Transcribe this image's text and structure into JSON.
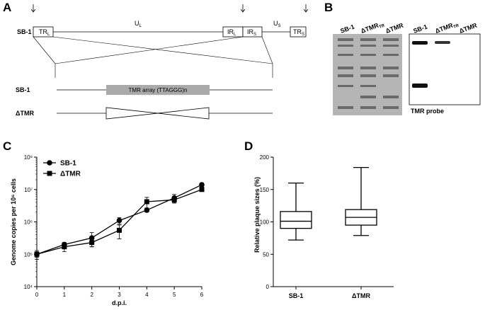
{
  "panel_labels": [
    "A",
    "B",
    "C",
    "D"
  ],
  "panel_a": {
    "genome_label": "SB-1",
    "TR_L": {
      "text": "TR",
      "sub": "L"
    },
    "U_L": {
      "text": "U",
      "sub": "L"
    },
    "IR_L": {
      "text": "IR",
      "sub": "L"
    },
    "IR_S": {
      "text": "IR",
      "sub": "S"
    },
    "U_S": {
      "text": "U",
      "sub": "S"
    },
    "TR_S": {
      "text": "TR",
      "sub": "S"
    },
    "wt_label": "SB-1",
    "tmr_array": "TMR array (TTAGGG)n",
    "mutant_label": "ΔTMR"
  },
  "panel_b": {
    "gel_lanes": [
      {
        "text": "SB-1",
        "sub": ""
      },
      {
        "text": "ΔTMR",
        "sub": "TR"
      },
      {
        "text": "ΔTMR",
        "sub": ""
      }
    ],
    "blot_lanes": [
      {
        "text": "SB-1",
        "sub": ""
      },
      {
        "text": "ΔTMR",
        "sub": "TR"
      },
      {
        "text": "ΔTMR",
        "sub": ""
      }
    ],
    "probe_label": "TMR probe"
  },
  "chart_data": [
    {
      "type": "line",
      "ylabel": "Genome copies per 10⁶ cells",
      "xlabel": "d.p.i.",
      "x": [
        0,
        1,
        2,
        3,
        4,
        5,
        6
      ],
      "xlim": [
        0,
        6
      ],
      "xticks": [
        0,
        1,
        2,
        3,
        4,
        5,
        6
      ],
      "log_scale": true,
      "ylim": [
        10000,
        100000000
      ],
      "yticks": [
        {
          "value": 10000,
          "label": "10⁴"
        },
        {
          "value": 100000,
          "label": "10⁵"
        },
        {
          "value": 1000000,
          "label": "10⁶"
        },
        {
          "value": 10000000,
          "label": "10⁷"
        },
        {
          "value": 100000000,
          "label": "10⁸"
        }
      ],
      "legend": "upper left",
      "series": [
        {
          "name": "SB-1",
          "color": "#000000",
          "marker": "circle",
          "values": [
            100000,
            200000,
            320000,
            1100000,
            2300000,
            5500000,
            14000000
          ],
          "errors": [
            20000,
            30000,
            150000,
            250000,
            300000,
            1500000,
            2000000
          ]
        },
        {
          "name": "ΔTMR",
          "color": "#000000",
          "marker": "square",
          "values": [
            100000,
            170000,
            230000,
            550000,
            4200000,
            4800000,
            10000000
          ],
          "errors": [
            30000,
            50000,
            60000,
            250000,
            1500000,
            1000000,
            1000000
          ]
        }
      ]
    },
    {
      "type": "box",
      "ylabel": "Relative plaque sizes (%)",
      "color": "#000000",
      "categories": [
        "SB-1",
        "ΔTMR"
      ],
      "ylim": [
        0,
        200
      ],
      "yticks": [
        0,
        50,
        100,
        150,
        200
      ],
      "min": [
        72,
        79
      ],
      "q1": [
        90,
        95
      ],
      "median": [
        101,
        107
      ],
      "q3": [
        116,
        119
      ],
      "max": [
        160,
        184
      ]
    }
  ]
}
